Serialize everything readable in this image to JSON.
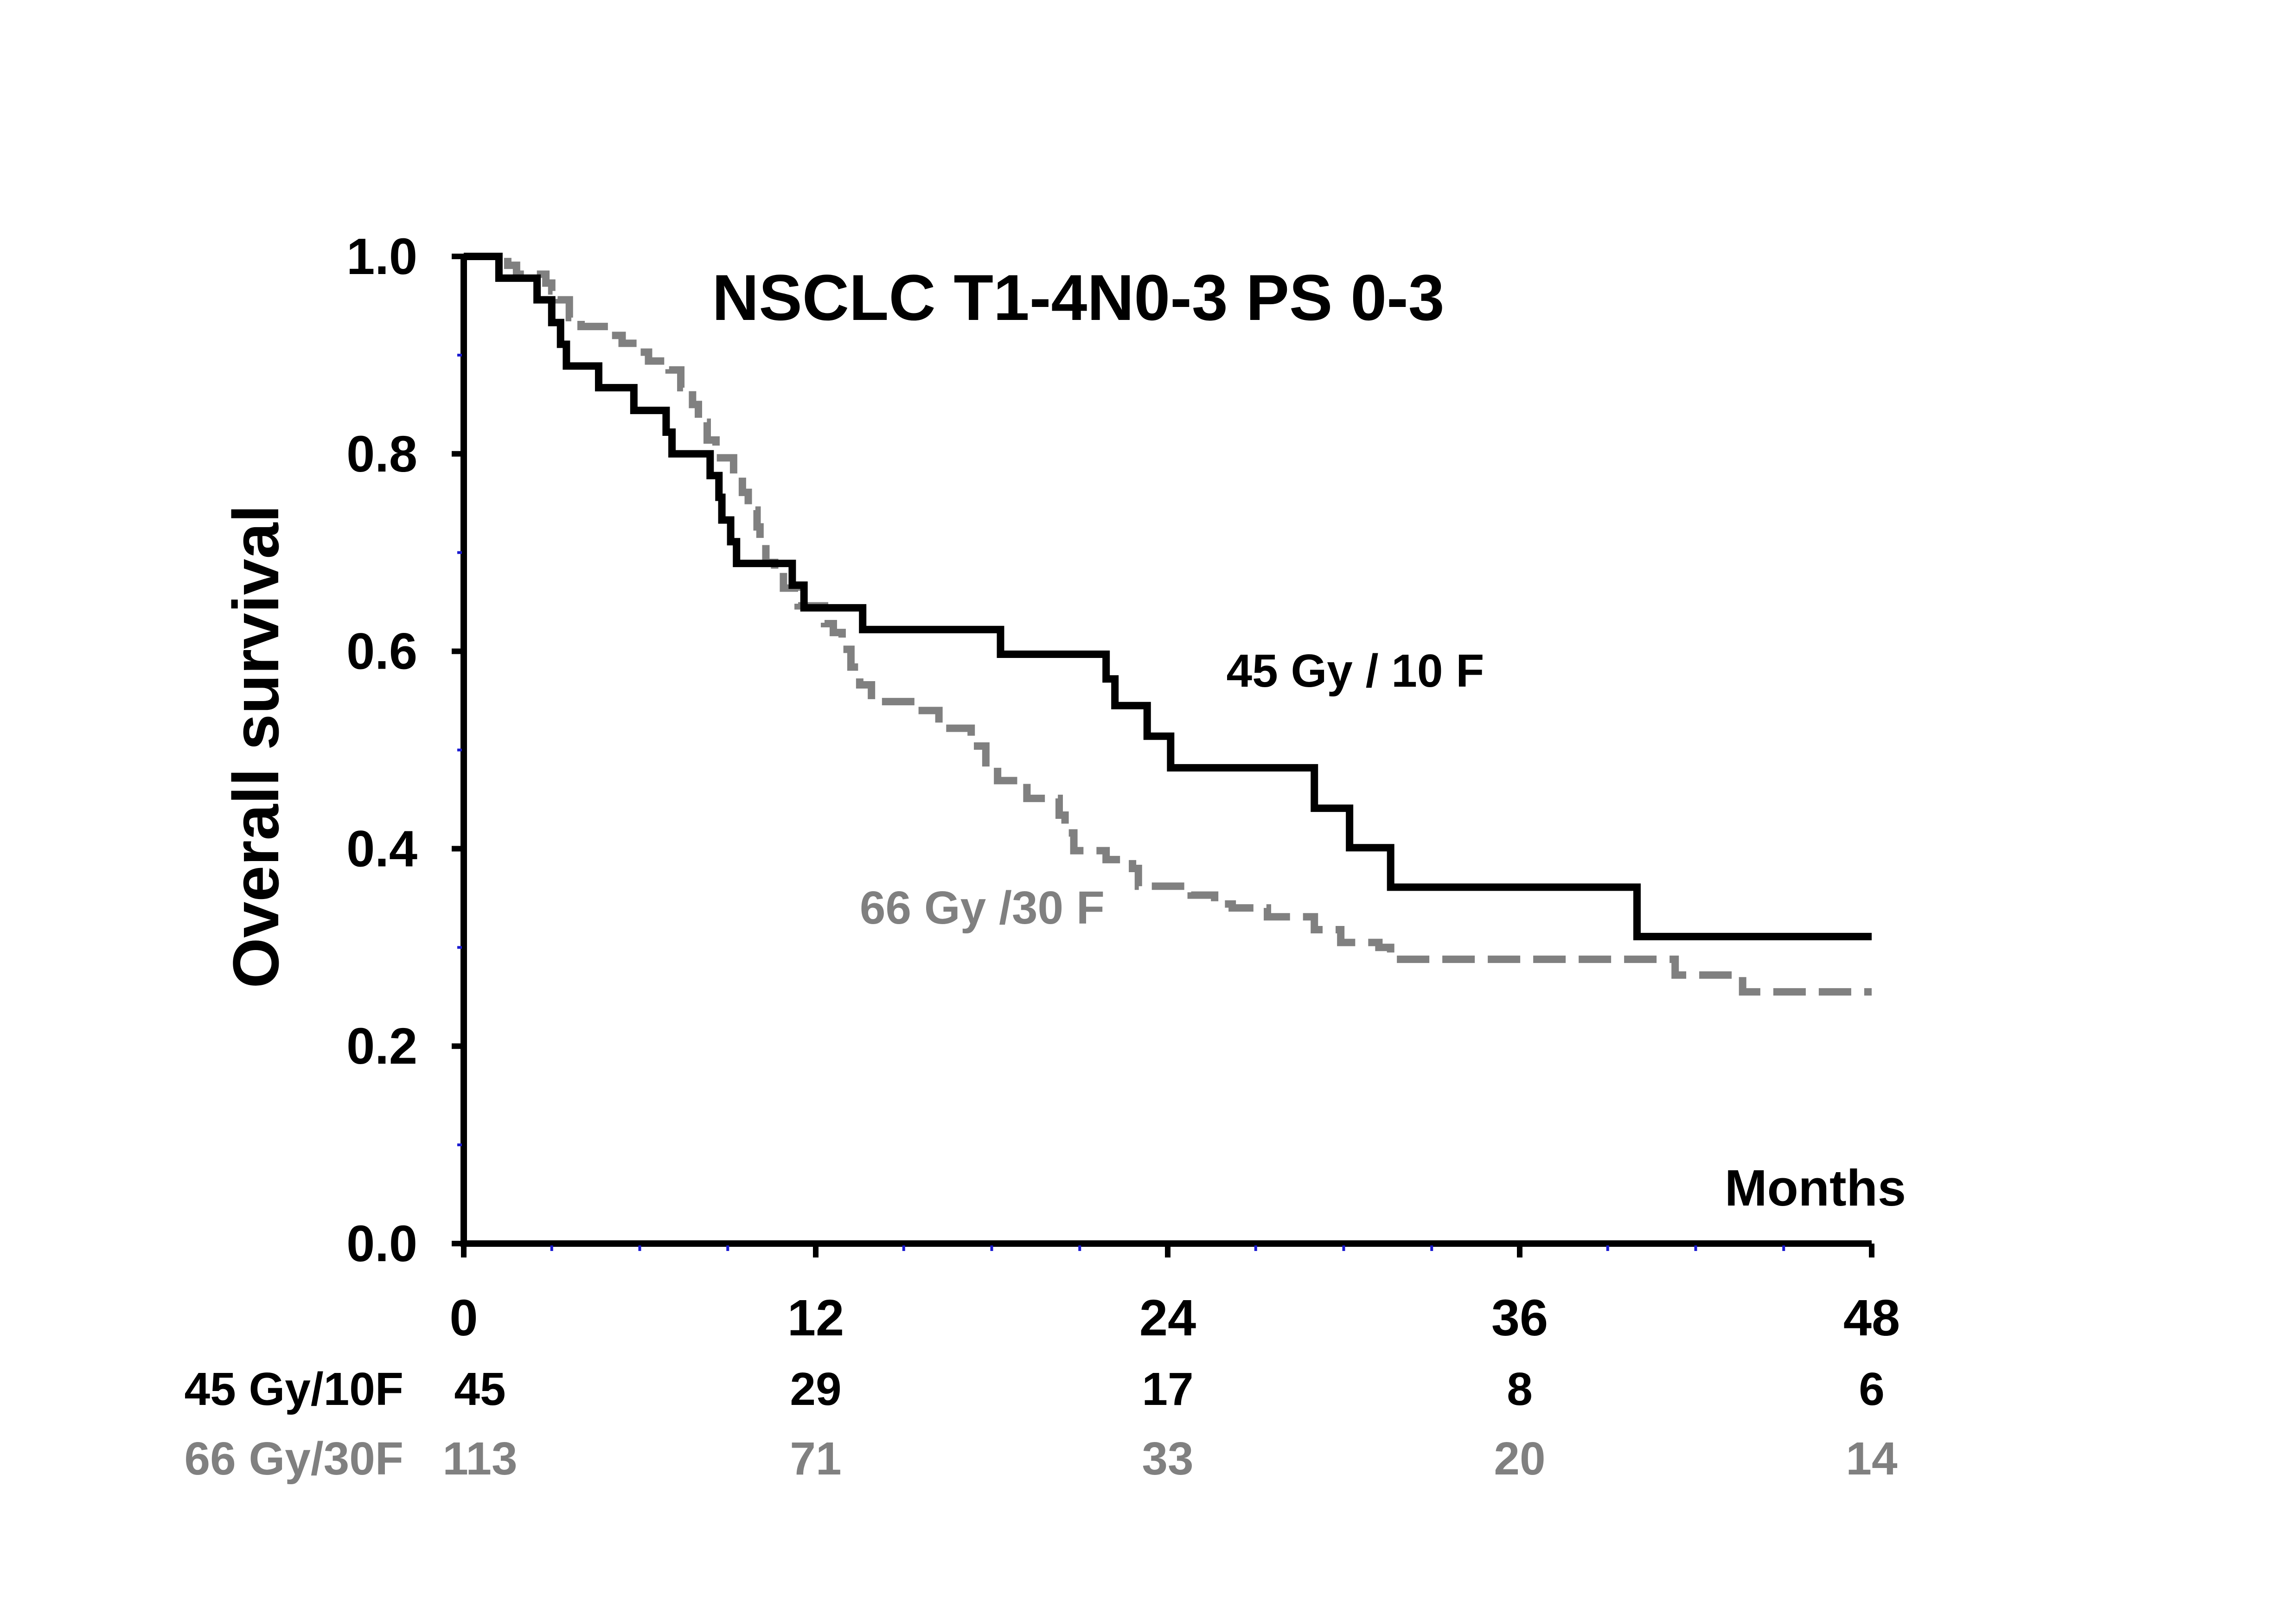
{
  "chart_data": {
    "type": "line",
    "title": "NSCLC  T1-4N0-3  PS 0-3",
    "xlabel": "Months",
    "ylabel": "Overall survival",
    "xlim": [
      0,
      48
    ],
    "ylim": [
      0,
      1
    ],
    "x_ticks": [
      "0",
      "12",
      "24",
      "36",
      "48"
    ],
    "y_ticks": [
      "0.0",
      "0.2",
      "0.4",
      "0.6",
      "0.8",
      "1.0"
    ],
    "grid": false,
    "colors": {
      "black_series": "#000000",
      "gray_series": "#808080"
    },
    "series": [
      {
        "name": "45 Gy / 10 F",
        "color": "#000000",
        "style": "solid",
        "step": [
          [
            0,
            1.0
          ],
          [
            1.2,
            0.978
          ],
          [
            2.5,
            0.956
          ],
          [
            3.0,
            0.933
          ],
          [
            3.3,
            0.911
          ],
          [
            3.5,
            0.889
          ],
          [
            4.6,
            0.867
          ],
          [
            5.8,
            0.844
          ],
          [
            6.9,
            0.822
          ],
          [
            7.1,
            0.8
          ],
          [
            8.4,
            0.778
          ],
          [
            8.7,
            0.756
          ],
          [
            8.8,
            0.733
          ],
          [
            9.1,
            0.711
          ],
          [
            9.3,
            0.689
          ],
          [
            11.2,
            0.667
          ],
          [
            11.6,
            0.644
          ],
          [
            13.6,
            0.622
          ],
          [
            18.3,
            0.597
          ],
          [
            21.9,
            0.572
          ],
          [
            22.2,
            0.545
          ],
          [
            23.3,
            0.514
          ],
          [
            24.1,
            0.482
          ],
          [
            29.0,
            0.441
          ],
          [
            30.2,
            0.401
          ],
          [
            31.6,
            0.361
          ],
          [
            40.0,
            0.311
          ],
          [
            48.0,
            0.311
          ]
        ]
      },
      {
        "name": "66 Gy /30 F",
        "color": "#808080",
        "style": "dashed",
        "step": [
          [
            0,
            1.0
          ],
          [
            1.5,
            0.991
          ],
          [
            1.8,
            0.982
          ],
          [
            2.8,
            0.973
          ],
          [
            3.0,
            0.965
          ],
          [
            3.2,
            0.956
          ],
          [
            3.6,
            0.938
          ],
          [
            4.0,
            0.929
          ],
          [
            5.0,
            0.92
          ],
          [
            5.4,
            0.912
          ],
          [
            5.9,
            0.903
          ],
          [
            6.3,
            0.894
          ],
          [
            7.0,
            0.885
          ],
          [
            7.4,
            0.867
          ],
          [
            7.8,
            0.85
          ],
          [
            8.0,
            0.832
          ],
          [
            8.3,
            0.814
          ],
          [
            8.6,
            0.796
          ],
          [
            9.2,
            0.779
          ],
          [
            9.5,
            0.761
          ],
          [
            9.7,
            0.743
          ],
          [
            10.0,
            0.726
          ],
          [
            10.1,
            0.708
          ],
          [
            10.3,
            0.69
          ],
          [
            10.6,
            0.681
          ],
          [
            10.9,
            0.664
          ],
          [
            11.4,
            0.646
          ],
          [
            12.3,
            0.628
          ],
          [
            12.6,
            0.619
          ],
          [
            12.9,
            0.602
          ],
          [
            13.2,
            0.584
          ],
          [
            13.5,
            0.566
          ],
          [
            13.9,
            0.549
          ],
          [
            15.5,
            0.54
          ],
          [
            16.2,
            0.522
          ],
          [
            17.3,
            0.504
          ],
          [
            17.8,
            0.487
          ],
          [
            18.2,
            0.469
          ],
          [
            19.2,
            0.451
          ],
          [
            20.3,
            0.434
          ],
          [
            20.5,
            0.416
          ],
          [
            20.8,
            0.398
          ],
          [
            21.9,
            0.389
          ],
          [
            22.8,
            0.38
          ],
          [
            23.0,
            0.362
          ],
          [
            24.8,
            0.353
          ],
          [
            25.6,
            0.344
          ],
          [
            26.2,
            0.34
          ],
          [
            27.4,
            0.331
          ],
          [
            29.0,
            0.318
          ],
          [
            29.9,
            0.305
          ],
          [
            31.2,
            0.3
          ],
          [
            31.6,
            0.288
          ],
          [
            41.3,
            0.272
          ],
          [
            43.6,
            0.255
          ],
          [
            48.0,
            0.255
          ]
        ]
      }
    ],
    "annotations": [
      {
        "text": "45 Gy / 10 F",
        "x": 26.0,
        "y": 0.58,
        "color": "#000000"
      },
      {
        "text": "66 Gy /30 F",
        "x": 13.5,
        "y": 0.34,
        "color": "#808080"
      }
    ],
    "number_at_risk": {
      "times": [
        0,
        12,
        24,
        36,
        48
      ],
      "rows": [
        {
          "label": "45 Gy/10F",
          "color": "#000000",
          "values": [
            "45",
            "29",
            "17",
            "8",
            "6"
          ]
        },
        {
          "label": "66 Gy/30F",
          "color": "#808080",
          "values": [
            "113",
            "71",
            "33",
            "20",
            "14"
          ]
        }
      ]
    }
  }
}
